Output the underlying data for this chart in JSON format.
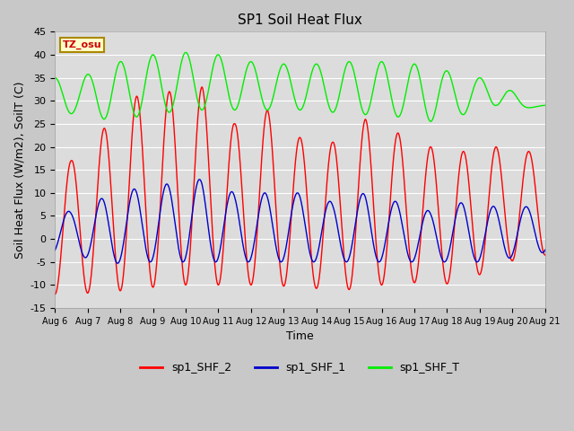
{
  "title": "SP1 Soil Heat Flux",
  "xlabel": "Time",
  "ylabel": "Soil Heat Flux (W/m2), SoilT (C)",
  "ylim": [
    -15,
    45
  ],
  "yticks": [
    -15,
    -10,
    -5,
    0,
    5,
    10,
    15,
    20,
    25,
    30,
    35,
    40,
    45
  ],
  "x_tick_labels": [
    "Aug 6",
    "Aug 7",
    "Aug 8",
    "Aug 9",
    "Aug 10",
    "Aug 11",
    "Aug 12",
    "Aug 13",
    "Aug 14",
    "Aug 15",
    "Aug 16",
    "Aug 17",
    "Aug 18",
    "Aug 19",
    "Aug 20",
    "Aug 21"
  ],
  "fig_bg_color": "#c8c8c8",
  "plot_bg_color": "#dcdcdc",
  "grid_color": "#ffffff",
  "tz_label": "TZ_osu",
  "shf2_color": "#ff0000",
  "shf1_color": "#0000cc",
  "shft_color": "#00ee00",
  "legend_labels": [
    "sp1_SHF_2",
    "sp1_SHF_1",
    "sp1_SHF_T"
  ],
  "shf2_peaks": [
    17,
    -13,
    24,
    -11,
    31,
    -12,
    32,
    -10,
    33,
    -10,
    25,
    -10,
    29,
    -10,
    22,
    -10,
    21,
    -11,
    26,
    -11,
    23,
    -11,
    20,
    -7,
    19,
    -13,
    20,
    -6
  ],
  "shf1_peaks": [
    0,
    -6,
    9,
    -5,
    11,
    -5,
    12,
    -5,
    13,
    -5,
    10,
    -5,
    10,
    -5,
    10,
    -5,
    8,
    -5,
    10,
    -5,
    8,
    -5,
    6,
    -5,
    7,
    -5
  ],
  "shft_peaks": [
    35,
    26,
    37,
    26,
    40,
    26,
    40,
    27,
    41,
    28,
    39,
    28,
    38,
    28,
    38,
    28,
    38,
    28,
    39,
    27,
    38,
    27,
    38,
    26,
    35,
    25,
    29,
    29
  ]
}
